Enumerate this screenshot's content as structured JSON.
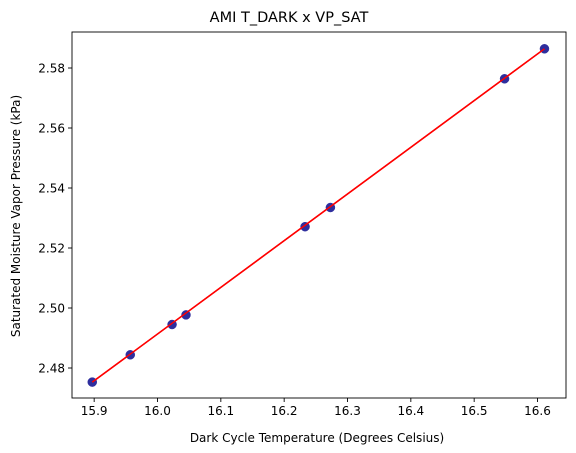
{
  "chart_data": {
    "type": "scatter",
    "title": "AMI T_DARK x VP_SAT",
    "xlabel": "Dark Cycle Temperature (Degrees Celsius)",
    "ylabel": "Saturated Moisture Vapor Pressure (kPa)",
    "xlim": [
      15.865,
      16.645
    ],
    "ylim": [
      2.47,
      2.592
    ],
    "x_ticks": [
      15.9,
      16.0,
      16.1,
      16.2,
      16.3,
      16.4,
      16.5,
      16.6
    ],
    "x_tick_labels": [
      "15.9",
      "16.0",
      "16.1",
      "16.2",
      "16.3",
      "16.4",
      "16.5",
      "16.6"
    ],
    "y_ticks": [
      2.48,
      2.5,
      2.52,
      2.54,
      2.56,
      2.58
    ],
    "y_tick_labels": [
      "2.48",
      "2.50",
      "2.52",
      "2.54",
      "2.56",
      "2.58"
    ],
    "grid": false,
    "series": [
      {
        "kind": "scatter",
        "color": "#2e2e9e",
        "x": [
          15.897,
          15.957,
          16.023,
          16.045,
          16.233,
          16.273,
          16.548,
          16.611
        ],
        "y": [
          2.4753,
          2.4844,
          2.4945,
          2.4977,
          2.5271,
          2.5335,
          2.5764,
          2.5864
        ]
      },
      {
        "kind": "line",
        "color": "#ff0000",
        "x": [
          15.897,
          16.611
        ],
        "y": [
          2.4753,
          2.5864
        ]
      }
    ]
  }
}
